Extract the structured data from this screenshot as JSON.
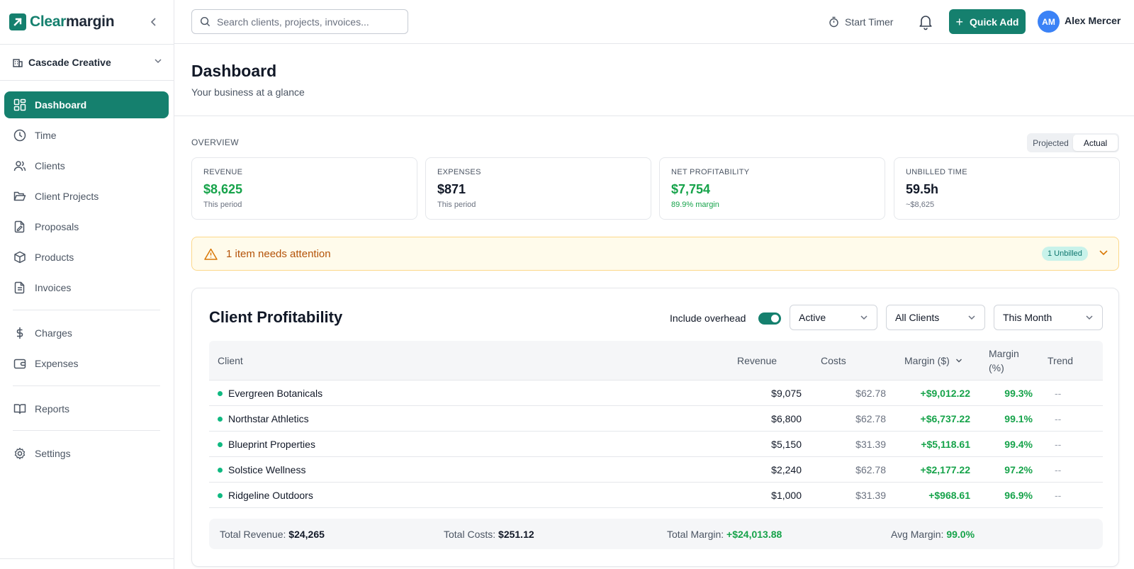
{
  "brand": {
    "name_part1": "Clear",
    "name_part2": "margin"
  },
  "workspace": {
    "name": "Cascade Creative"
  },
  "nav": {
    "dashboard": "Dashboard",
    "time": "Time",
    "clients": "Clients",
    "client_projects": "Client Projects",
    "proposals": "Proposals",
    "products": "Products",
    "invoices": "Invoices",
    "charges": "Charges",
    "expenses": "Expenses",
    "reports": "Reports",
    "settings": "Settings"
  },
  "topbar": {
    "search_placeholder": "Search clients, projects, invoices...",
    "start_timer": "Start Timer",
    "quick_add": "Quick Add",
    "avatar_initials": "AM",
    "user_name": "Alex Mercer"
  },
  "page": {
    "title": "Dashboard",
    "subtitle": "Your business at a glance"
  },
  "overview": {
    "label": "OVERVIEW",
    "toggle_options": [
      "Projected",
      "Actual"
    ],
    "selected_option": "Actual",
    "cards": [
      {
        "label": "REVENUE",
        "value": "$8,625",
        "sub": "This period"
      },
      {
        "label": "EXPENSES",
        "value": "$871",
        "sub": "This period"
      },
      {
        "label": "NET PROFITABILITY",
        "value": "$7,754",
        "sub": "89.9% margin"
      },
      {
        "label": "UNBILLED TIME",
        "value": "59.5h",
        "sub": "~$8,625"
      }
    ]
  },
  "alert": {
    "text": "1 item needs attention",
    "badge": "1 Unbilled"
  },
  "profitability": {
    "title": "Client Profitability",
    "include_overhead_label": "Include overhead",
    "include_overhead": true,
    "filters": {
      "status": "Active",
      "clients": "All Clients",
      "period": "This Month"
    },
    "columns": {
      "client": "Client",
      "revenue": "Revenue",
      "costs": "Costs",
      "margin_amount": "Margin ($)",
      "margin_pct_1": "Margin",
      "margin_pct_2": "(%)",
      "trend": "Trend"
    },
    "rows": [
      {
        "client": "Evergreen Botanicals",
        "revenue": "$9,075",
        "costs": "$62.78",
        "margin": "+$9,012.22",
        "margin_pct": "99.3%",
        "trend": "--"
      },
      {
        "client": "Northstar Athletics",
        "revenue": "$6,800",
        "costs": "$62.78",
        "margin": "+$6,737.22",
        "margin_pct": "99.1%",
        "trend": "--"
      },
      {
        "client": "Blueprint Properties",
        "revenue": "$5,150",
        "costs": "$31.39",
        "margin": "+$5,118.61",
        "margin_pct": "99.4%",
        "trend": "--"
      },
      {
        "client": "Solstice Wellness",
        "revenue": "$2,240",
        "costs": "$62.78",
        "margin": "+$2,177.22",
        "margin_pct": "97.2%",
        "trend": "--"
      },
      {
        "client": "Ridgeline Outdoors",
        "revenue": "$1,000",
        "costs": "$31.39",
        "margin": "+$968.61",
        "margin_pct": "96.9%",
        "trend": "--"
      }
    ],
    "totals": {
      "revenue_label": "Total Revenue:",
      "revenue": "$24,265",
      "costs_label": "Total Costs:",
      "costs": "$251.12",
      "margin_label": "Total Margin:",
      "margin": "+$24,013.88",
      "avg_label": "Avg Margin:",
      "avg": "99.0%"
    }
  },
  "colors": {
    "brand": "#15806e",
    "positive": "#16a34a",
    "warning": "#b45309",
    "avatar": "#3b82f6"
  }
}
